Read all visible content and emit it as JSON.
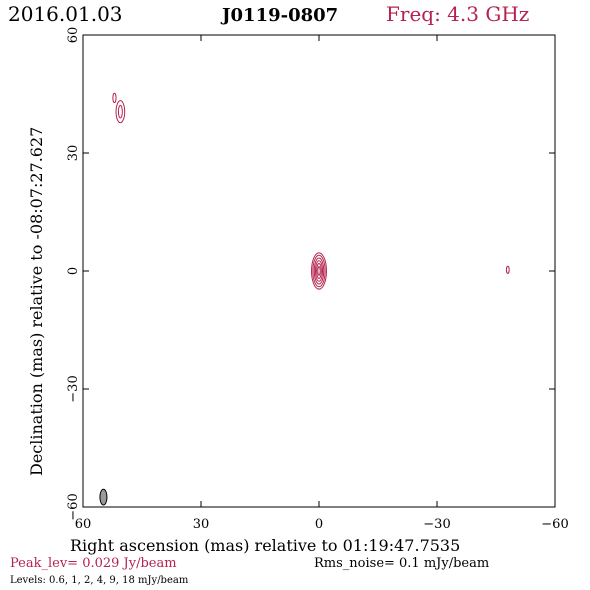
{
  "header": {
    "date": "2016.01.03",
    "source": "J0119-0807",
    "freq": "Freq: 4.3 GHz"
  },
  "footer": {
    "peak": "Peak_lev=  0.029 Jy/beam",
    "rms": "Rms_noise=   0.1 mJy/beam",
    "levels": "Levels: 0.6,    1,    2,    4,    9,   18 mJy/beam"
  },
  "colors": {
    "accent": "#b5234f",
    "axis": "#000000",
    "beam_fill": "#9a9a9a"
  },
  "chart_data": {
    "type": "contour",
    "xlabel": "Right ascension (mas) relative to 01:19:47.7535",
    "ylabel": "Declination (mas) relative to -08:07:27.627",
    "xlim": [
      60,
      -60
    ],
    "ylim": [
      -60,
      60
    ],
    "xticks": [
      60,
      30,
      0,
      -30,
      -60
    ],
    "yticks": [
      -60,
      -30,
      0,
      30,
      60
    ],
    "xtick_labels": [
      "60",
      "30",
      "0",
      "−30",
      "−60"
    ],
    "ytick_labels": [
      "−60",
      "−30",
      "0",
      "30",
      "60"
    ],
    "contour_levels_mJy": [
      0.6,
      1,
      2,
      4,
      9,
      18
    ],
    "components": [
      {
        "x": 0.0,
        "y": 0.0,
        "contours": [
          {
            "a": 1.9,
            "b": 4.6
          },
          {
            "a": 1.55,
            "b": 4.0
          },
          {
            "a": 1.2,
            "b": 3.3
          },
          {
            "a": 0.9,
            "b": 2.6
          },
          {
            "a": 0.6,
            "b": 1.9
          },
          {
            "a": 0.3,
            "b": 1.1
          }
        ]
      },
      {
        "x": 50.5,
        "y": 40.5,
        "contours": [
          {
            "a": 1.1,
            "b": 2.8
          },
          {
            "a": 0.5,
            "b": 1.6
          }
        ]
      },
      {
        "x": 52.0,
        "y": 44.0,
        "contours": [
          {
            "a": 0.4,
            "b": 1.2
          }
        ]
      },
      {
        "x": -48.0,
        "y": 0.3,
        "contours": [
          {
            "a": 0.35,
            "b": 0.9
          }
        ]
      }
    ],
    "beam": {
      "x": 54.8,
      "y": -57.5,
      "a": 0.9,
      "b": 2.0
    }
  }
}
